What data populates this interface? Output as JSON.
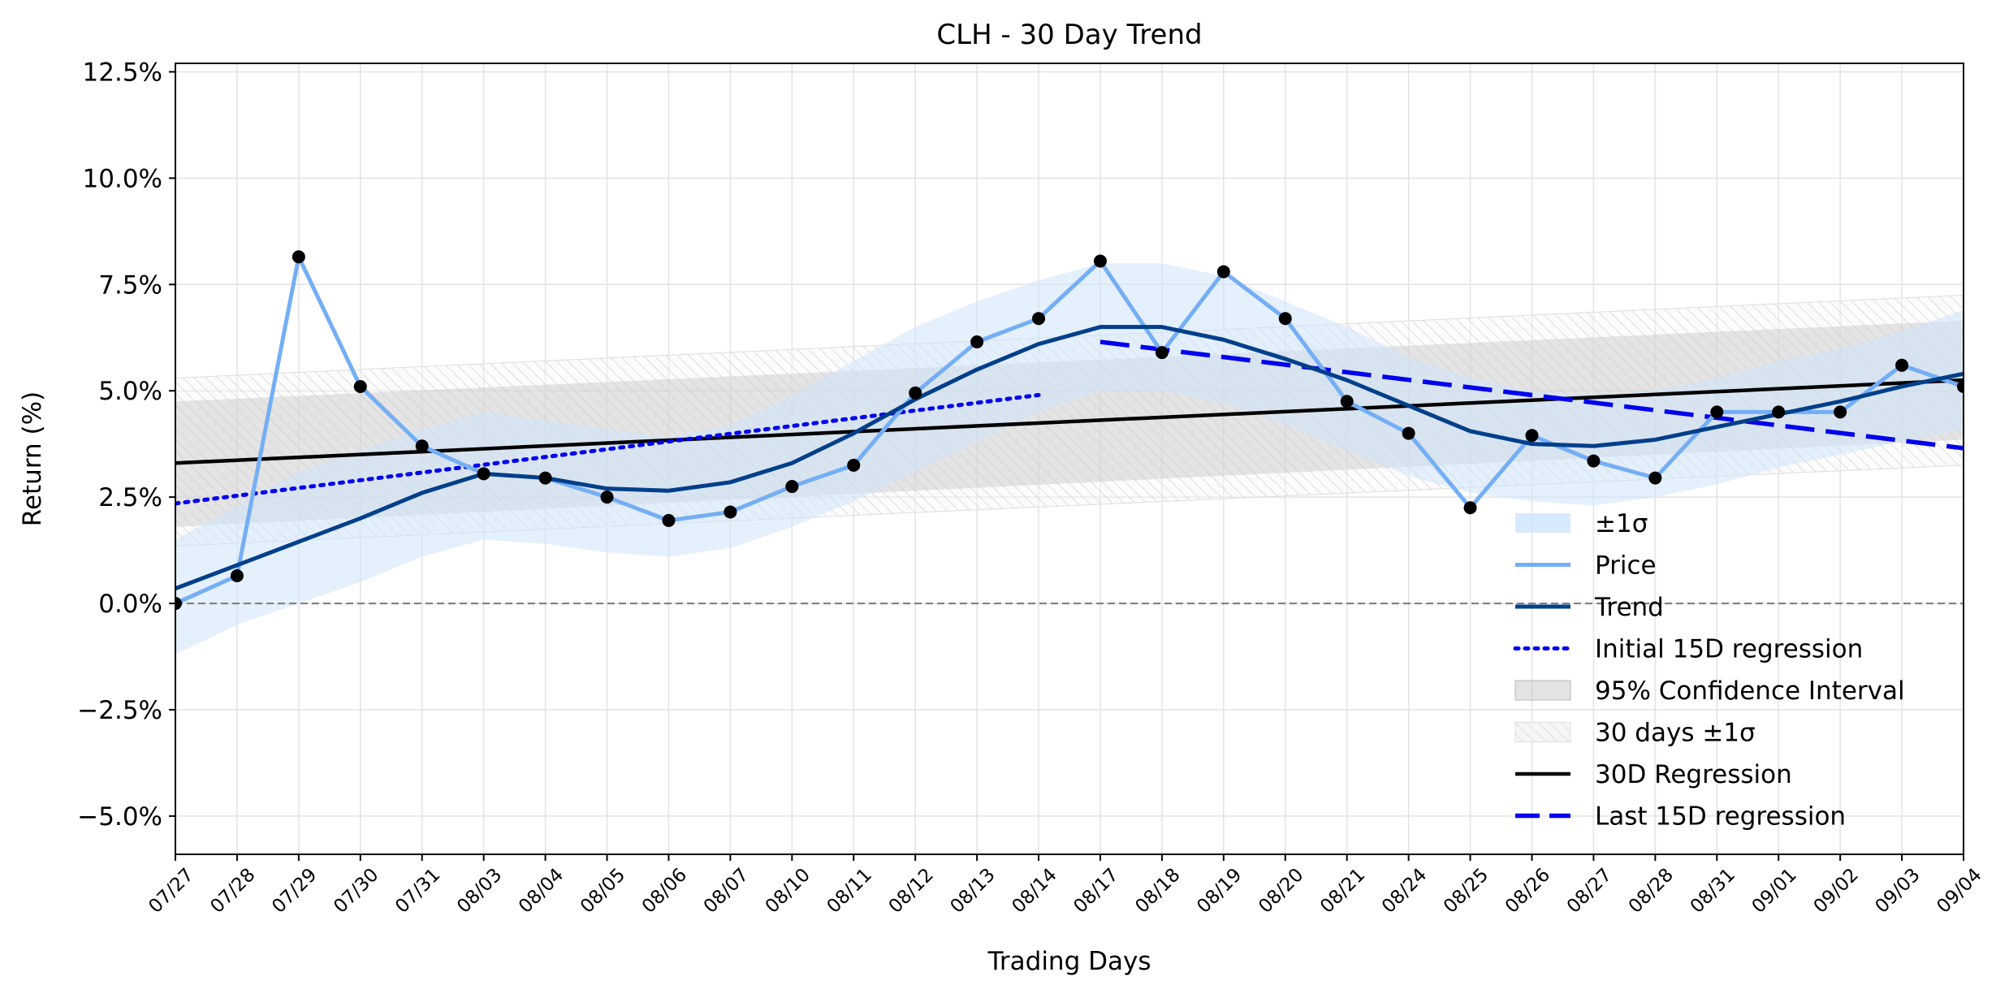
{
  "chart_data": {
    "type": "line",
    "title": "CLH - 30 Day Trend",
    "xlabel": "Trading Days",
    "ylabel": "Return (%)",
    "ylim": [
      -5.9,
      12.7
    ],
    "yticks": [
      -5.0,
      -2.5,
      0.0,
      2.5,
      5.0,
      7.5,
      10.0,
      12.5
    ],
    "ytick_labels": [
      "−5.0%",
      "−2.5%",
      "0.0%",
      "2.5%",
      "5.0%",
      "7.5%",
      "10.0%",
      "12.5%"
    ],
    "grid": true,
    "legend_position": "lower-right",
    "x": [
      "07/27",
      "07/28",
      "07/29",
      "07/30",
      "07/31",
      "08/03",
      "08/04",
      "08/05",
      "08/06",
      "08/07",
      "08/10",
      "08/11",
      "08/12",
      "08/13",
      "08/14",
      "08/17",
      "08/18",
      "08/19",
      "08/20",
      "08/21",
      "08/24",
      "08/25",
      "08/26",
      "08/27",
      "08/28",
      "08/31",
      "09/01",
      "09/02",
      "09/03",
      "09/04"
    ],
    "series": [
      {
        "name": "Price",
        "color": "#74aef5",
        "values": [
          0.0,
          0.65,
          8.15,
          5.1,
          3.7,
          3.05,
          2.95,
          2.5,
          1.95,
          2.15,
          2.75,
          3.25,
          4.95,
          6.15,
          6.7,
          8.05,
          5.9,
          7.8,
          6.7,
          4.75,
          4.0,
          2.25,
          3.95,
          3.35,
          2.95,
          4.5,
          4.5,
          4.5,
          5.6,
          5.1
        ]
      },
      {
        "name": "Trend",
        "color": "#003f8a",
        "values": [
          0.35,
          0.9,
          1.45,
          2.0,
          2.6,
          3.05,
          2.95,
          2.7,
          2.65,
          2.85,
          3.3,
          4.0,
          4.8,
          5.5,
          6.1,
          6.5,
          6.5,
          6.2,
          5.75,
          5.25,
          4.65,
          4.05,
          3.75,
          3.7,
          3.85,
          4.15,
          4.45,
          4.75,
          5.1,
          5.4
        ]
      },
      {
        "name": "±1σ",
        "color": "#d6e8fd",
        "upper": [
          1.5,
          2.3,
          3.1,
          3.6,
          4.1,
          4.5,
          4.3,
          4.1,
          3.9,
          4.2,
          4.9,
          5.7,
          6.5,
          7.1,
          7.6,
          8.0,
          8.0,
          7.7,
          7.1,
          6.5,
          5.8,
          5.3,
          5.0,
          4.9,
          5.0,
          5.3,
          5.7,
          6.0,
          6.4,
          6.9
        ],
        "lower": [
          -1.2,
          -0.5,
          0.0,
          0.5,
          1.1,
          1.5,
          1.4,
          1.2,
          1.1,
          1.3,
          1.8,
          2.4,
          3.1,
          3.8,
          4.5,
          5.0,
          5.0,
          4.7,
          4.2,
          3.6,
          3.0,
          2.6,
          2.4,
          2.3,
          2.5,
          2.8,
          3.2,
          3.5,
          3.8,
          4.1
        ]
      }
    ],
    "regression_30d": {
      "name": "30D Regression",
      "color": "#000000",
      "start": 3.3,
      "end": 5.25
    },
    "ci95": {
      "name": "95% Confidence Interval",
      "color": "#c8c8c8",
      "start_lower": 1.8,
      "start_upper": 4.75,
      "end_lower": 3.85,
      "end_upper": 6.65
    },
    "band_30d": {
      "name": "30 days ±1σ",
      "color": "#bbbbbb",
      "start_lower": 1.35,
      "start_upper": 5.3,
      "end_lower": 3.25,
      "end_upper": 7.25
    },
    "initial_15d": {
      "name": "Initial 15D regression",
      "color": "#0000ee",
      "start_index": 0,
      "end_index": 14,
      "start": 2.35,
      "end": 4.9
    },
    "last_15d": {
      "name": "Last 15D regression",
      "color": "#0000ee",
      "start_index": 15,
      "end_index": 29,
      "start": 6.15,
      "end": 3.65
    },
    "zero_line": {
      "value": 0.0,
      "color": "#808080"
    },
    "legend": [
      "±1σ",
      "Price",
      "Trend",
      "Initial 15D regression",
      "95% Confidence Interval",
      "30 days ±1σ",
      "30D Regression",
      "Last 15D regression"
    ]
  }
}
